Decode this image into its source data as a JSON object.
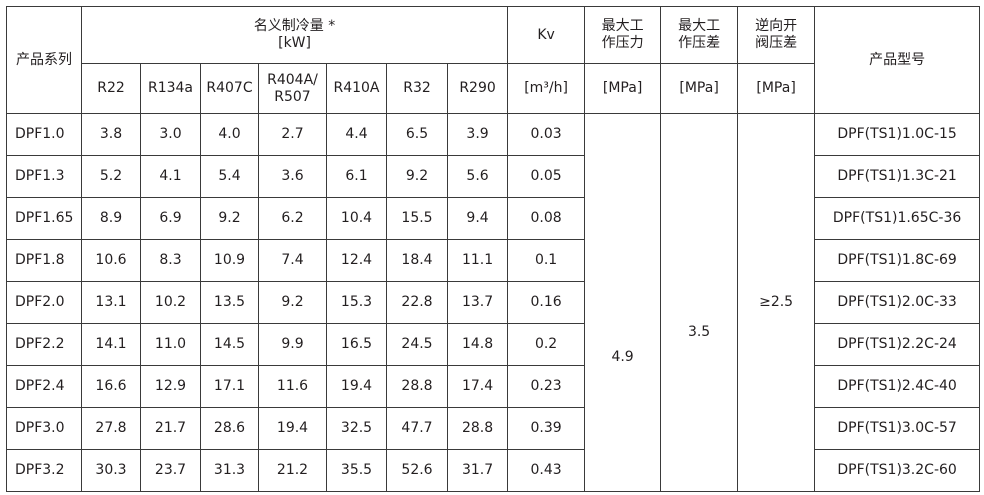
{
  "header": {
    "series": "产品系列",
    "capacity_title": "名义制冷量 *",
    "capacity_unit": "[kW]",
    "kv": "Kv",
    "kv_unit": "[m³/h]",
    "max_pressure_l1": "最大工",
    "max_pressure_l2": "作压力",
    "max_pressure_unit": "[MPa]",
    "max_diff_l1": "最大工",
    "max_diff_l2": "作压差",
    "max_diff_unit": "[MPa]",
    "reverse_l1": "逆向开",
    "reverse_l2": "阀压差",
    "reverse_unit": "[MPa]",
    "model": "产品型号",
    "refrigerants": [
      "R22",
      "R134a",
      "R407C",
      "R404A/\nR507",
      "R410A",
      "R32",
      "R290"
    ]
  },
  "rows": [
    {
      "series": "DPF1.0",
      "vals": [
        "3.8",
        "3.0",
        "4.0",
        "2.7",
        "4.4",
        "6.5",
        "3.9"
      ],
      "kv": "0.03",
      "model": "DPF(TS1)1.0C-15"
    },
    {
      "series": "DPF1.3",
      "vals": [
        "5.2",
        "4.1",
        "5.4",
        "3.6",
        "6.1",
        "9.2",
        "5.6"
      ],
      "kv": "0.05",
      "model": "DPF(TS1)1.3C-21"
    },
    {
      "series": "DPF1.65",
      "vals": [
        "8.9",
        "6.9",
        "9.2",
        "6.2",
        "10.4",
        "15.5",
        "9.4"
      ],
      "kv": "0.08",
      "model": "DPF(TS1)1.65C-36"
    },
    {
      "series": "DPF1.8",
      "vals": [
        "10.6",
        "8.3",
        "10.9",
        "7.4",
        "12.4",
        "18.4",
        "11.1"
      ],
      "kv": "0.1",
      "model": "DPF(TS1)1.8C-69"
    },
    {
      "series": "DPF2.0",
      "vals": [
        "13.1",
        "10.2",
        "13.5",
        "9.2",
        "15.3",
        "22.8",
        "13.7"
      ],
      "kv": "0.16",
      "model": "DPF(TS1)2.0C-33"
    },
    {
      "series": "DPF2.2",
      "vals": [
        "14.1",
        "11.0",
        "14.5",
        "9.9",
        "16.5",
        "24.5",
        "14.8"
      ],
      "kv": "0.2",
      "model": "DPF(TS1)2.2C-24"
    },
    {
      "series": "DPF2.4",
      "vals": [
        "16.6",
        "12.9",
        "17.1",
        "11.6",
        "19.4",
        "28.8",
        "17.4"
      ],
      "kv": "0.23",
      "model": "DPF(TS1)2.4C-40"
    },
    {
      "series": "DPF3.0",
      "vals": [
        "27.8",
        "21.7",
        "28.6",
        "19.4",
        "32.5",
        "47.7",
        "28.8"
      ],
      "kv": "0.39",
      "model": "DPF(TS1)3.0C-57"
    },
    {
      "series": "DPF3.2",
      "vals": [
        "30.3",
        "23.7",
        "31.3",
        "21.2",
        "35.5",
        "52.6",
        "31.7"
      ],
      "kv": "0.43",
      "model": "DPF(TS1)3.2C-60"
    }
  ],
  "merged": {
    "max_pressure": "4.9",
    "max_diff": "3.5",
    "reverse_diff": "≥2.5"
  }
}
